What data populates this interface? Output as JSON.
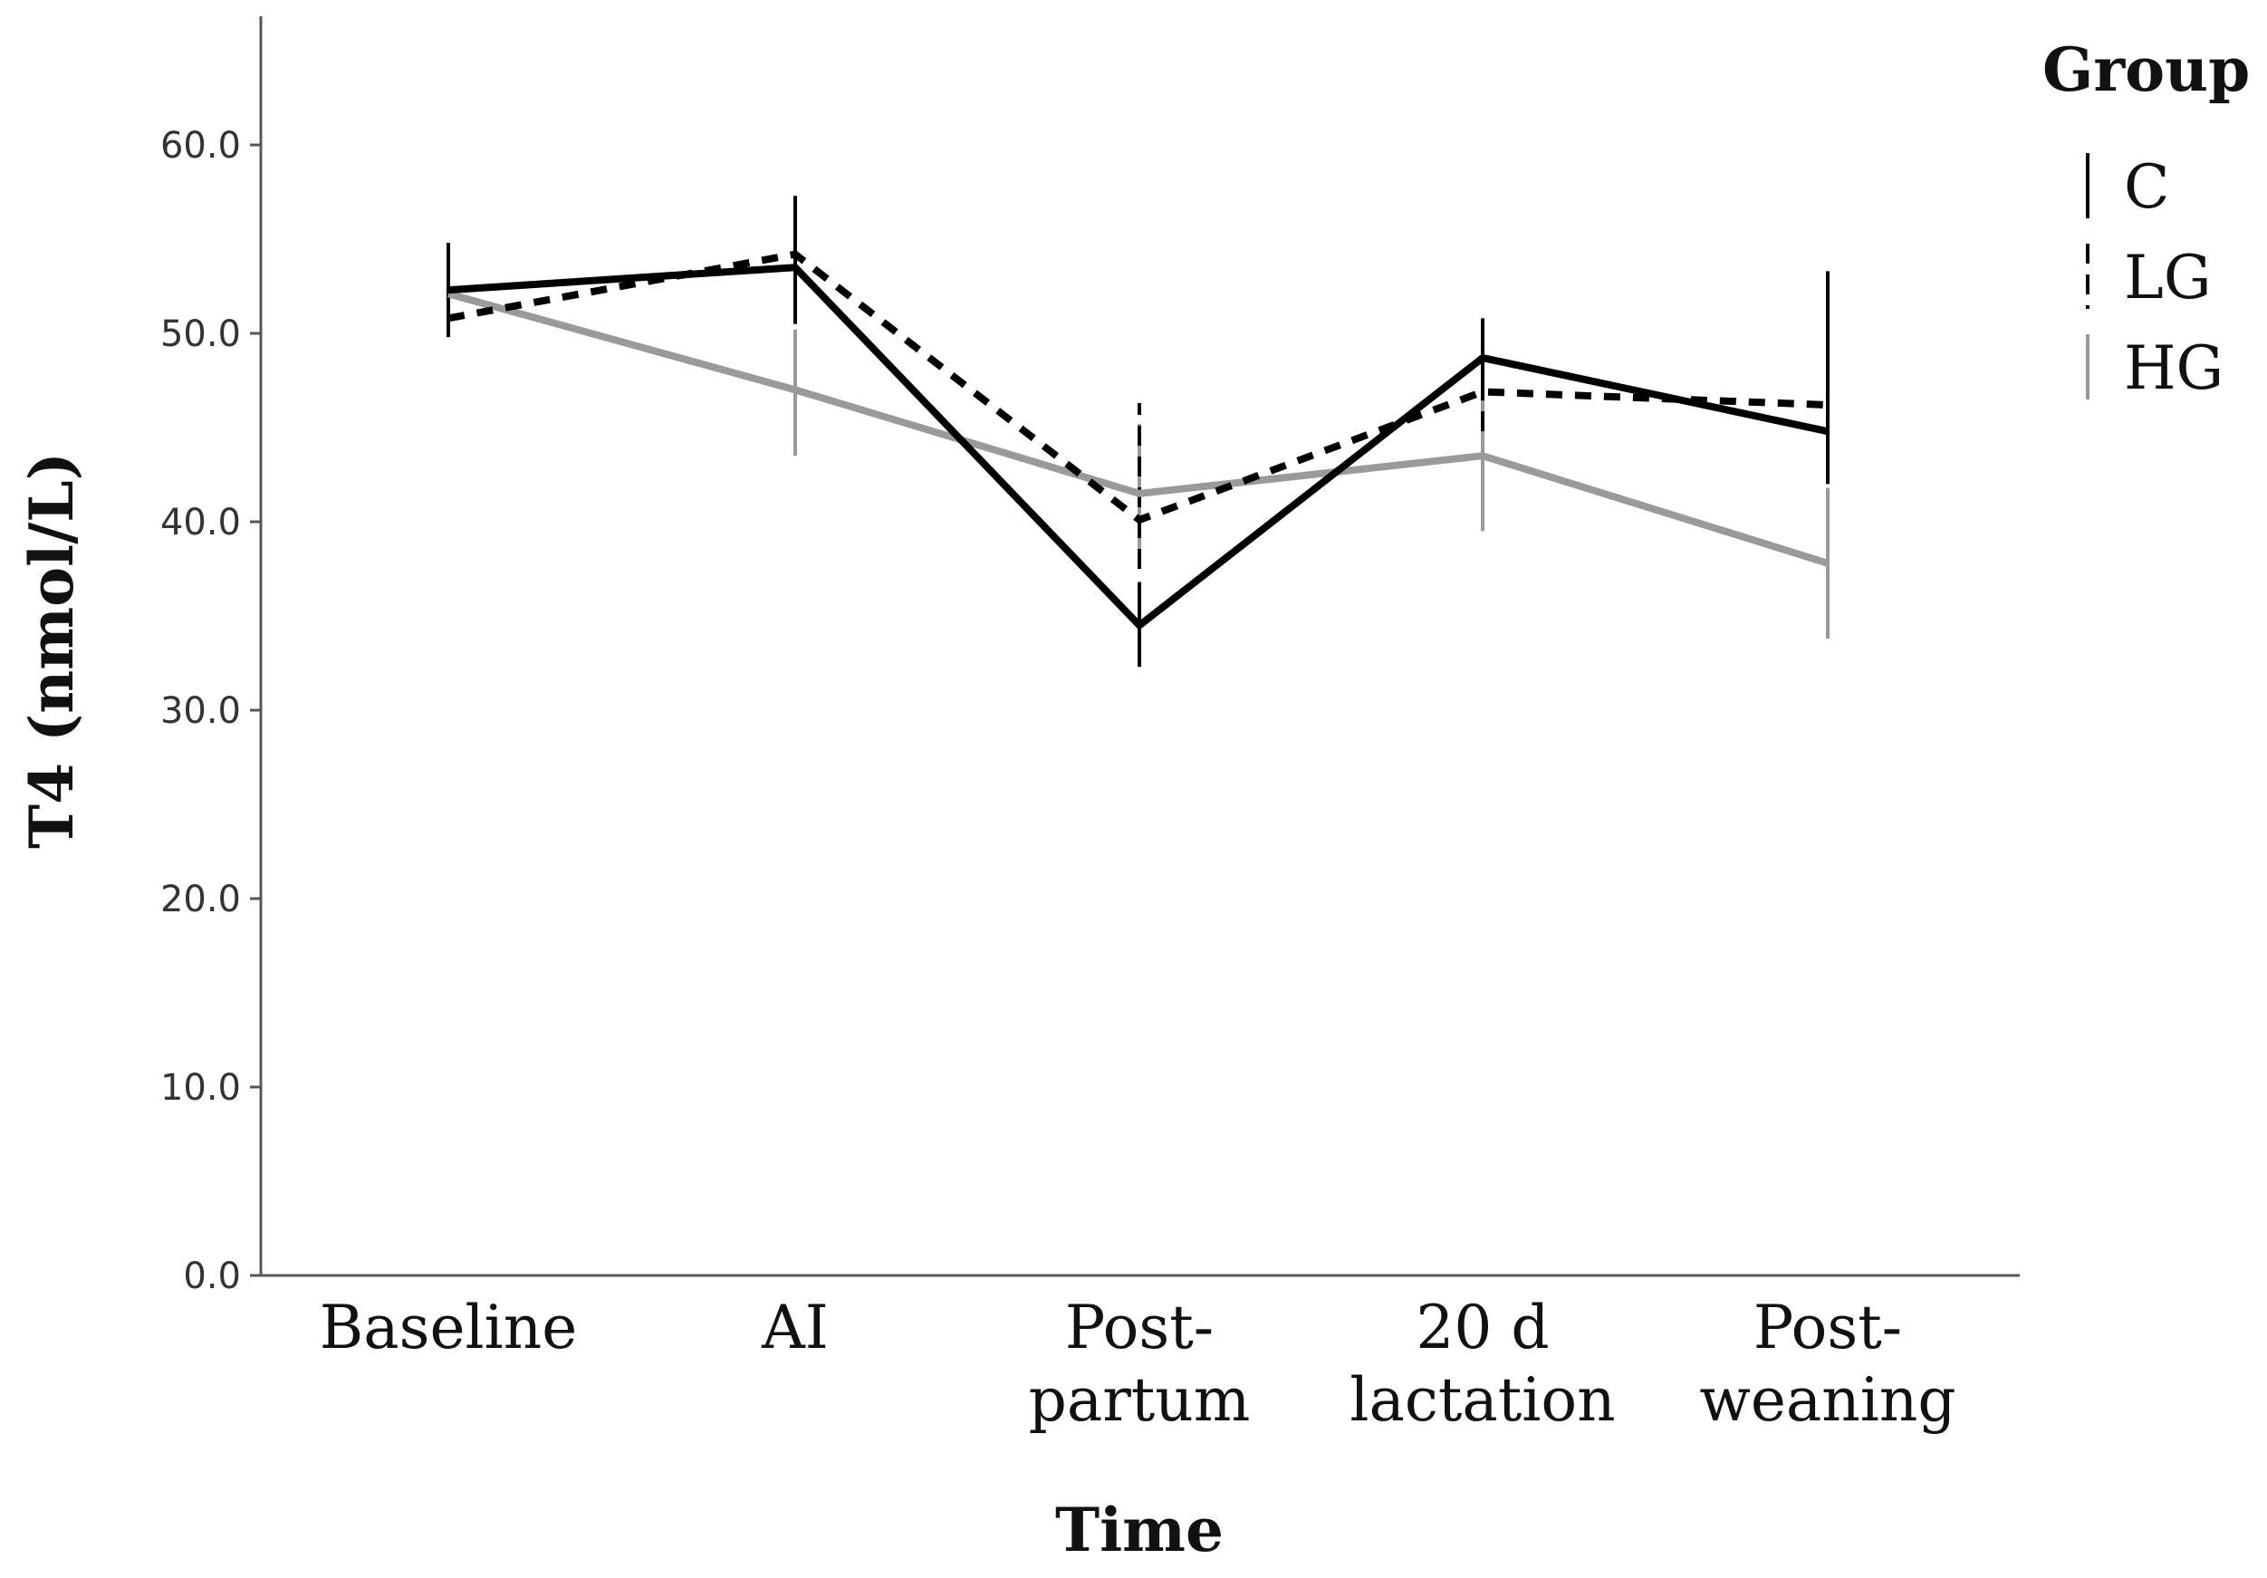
{
  "chart_data": {
    "type": "line",
    "title": "",
    "xlabel": "Time",
    "ylabel": "T4 (nmol/L)",
    "ylim": [
      0,
      66
    ],
    "yticks": [
      "0.0",
      "10.0",
      "20.0",
      "30.0",
      "40.0",
      "50.0",
      "60.0"
    ],
    "ytick_values": [
      0,
      10,
      20,
      30,
      40,
      50,
      60
    ],
    "categories": [
      [
        "Baseline"
      ],
      [
        "AI"
      ],
      [
        "Post-",
        "partum"
      ],
      [
        "20 d",
        "lactation"
      ],
      [
        "Post-",
        "weaning"
      ]
    ],
    "legend": {
      "title": "Group",
      "position": "top-right"
    },
    "series": [
      {
        "name": "C",
        "style": "solid",
        "color": "#000000",
        "values": [
          52.3,
          53.5,
          34.5,
          48.7,
          44.8
        ],
        "error_low": [
          50.1,
          50.5,
          32.3,
          46.5,
          42.0
        ],
        "error_high": [
          54.8,
          57.3,
          36.8,
          50.8,
          53.3
        ]
      },
      {
        "name": "LG",
        "style": "dashed",
        "color": "#000000",
        "values": [
          50.8,
          54.2,
          40.1,
          46.9,
          46.2
        ],
        "error_low": [
          49.8,
          52.3,
          37.5,
          44.8,
          44.5
        ],
        "error_high": [
          52.3,
          55.5,
          46.3,
          49.2,
          48.0
        ]
      },
      {
        "name": "HG",
        "style": "solid",
        "color": "#9a9a9a",
        "values": [
          52.1,
          47.0,
          41.5,
          43.5,
          37.8
        ],
        "error_low": [
          51.2,
          43.5,
          37.8,
          39.5,
          33.8
        ],
        "error_high": [
          53.0,
          50.2,
          45.2,
          47.5,
          41.8
        ]
      }
    ]
  }
}
